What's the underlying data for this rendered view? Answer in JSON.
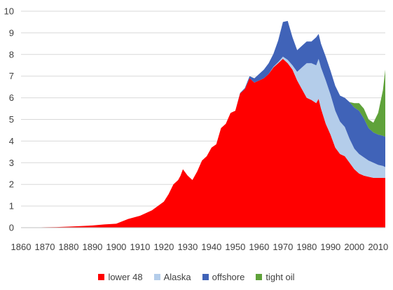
{
  "chart_data": {
    "type": "area",
    "stacked": true,
    "title": "",
    "xlabel": "",
    "ylabel": "",
    "xlim": [
      1860,
      2013
    ],
    "ylim": [
      0,
      10
    ],
    "grid": "horizontal",
    "legend_position": "bottom",
    "x_ticks": [
      1860,
      1870,
      1880,
      1890,
      1900,
      1910,
      1920,
      1930,
      1940,
      1950,
      1960,
      1970,
      1980,
      1990,
      2000,
      2010
    ],
    "y_ticks": [
      0,
      1,
      2,
      3,
      4,
      5,
      6,
      7,
      8,
      9,
      10
    ],
    "x": [
      1860,
      1865,
      1870,
      1875,
      1880,
      1885,
      1890,
      1895,
      1900,
      1905,
      1910,
      1915,
      1920,
      1922,
      1924,
      1926,
      1927,
      1928,
      1930,
      1932,
      1934,
      1936,
      1938,
      1940,
      1942,
      1944,
      1946,
      1948,
      1950,
      1952,
      1954,
      1956,
      1958,
      1960,
      1962,
      1964,
      1966,
      1968,
      1970,
      1972,
      1974,
      1976,
      1978,
      1980,
      1982,
      1984,
      1985,
      1986,
      1988,
      1990,
      1992,
      1994,
      1996,
      1998,
      2000,
      2002,
      2004,
      2006,
      2008,
      2010,
      2012,
      2013
    ],
    "series": [
      {
        "name": "lower 48",
        "color": "#ff0000",
        "values": [
          0.0,
          0.01,
          0.02,
          0.03,
          0.05,
          0.07,
          0.1,
          0.15,
          0.18,
          0.4,
          0.55,
          0.8,
          1.2,
          1.55,
          2.0,
          2.2,
          2.4,
          2.7,
          2.4,
          2.2,
          2.6,
          3.1,
          3.3,
          3.7,
          3.85,
          4.6,
          4.8,
          5.3,
          5.4,
          6.2,
          6.4,
          6.9,
          6.7,
          6.8,
          6.9,
          7.1,
          7.4,
          7.6,
          7.8,
          7.6,
          7.3,
          6.8,
          6.4,
          6.0,
          5.9,
          5.75,
          5.95,
          5.5,
          4.8,
          4.3,
          3.7,
          3.4,
          3.3,
          3.0,
          2.7,
          2.5,
          2.4,
          2.35,
          2.3,
          2.3,
          2.3,
          2.3
        ]
      },
      {
        "name": "Alaska",
        "color": "#b4cdea",
        "values": [
          0,
          0,
          0,
          0,
          0,
          0,
          0,
          0,
          0,
          0,
          0,
          0,
          0,
          0,
          0,
          0,
          0,
          0,
          0,
          0,
          0,
          0,
          0,
          0,
          0,
          0,
          0,
          0,
          0,
          0,
          0,
          0,
          0,
          0,
          0,
          0,
          0.03,
          0.05,
          0.1,
          0.15,
          0.2,
          0.4,
          1.0,
          1.6,
          1.7,
          1.75,
          1.85,
          1.9,
          2.0,
          1.85,
          1.7,
          1.5,
          1.35,
          1.1,
          0.95,
          0.9,
          0.85,
          0.75,
          0.7,
          0.6,
          0.55,
          0.5
        ]
      },
      {
        "name": "offshore",
        "color": "#4063b8",
        "values": [
          0,
          0,
          0,
          0,
          0,
          0,
          0,
          0,
          0,
          0,
          0,
          0,
          0,
          0,
          0,
          0,
          0,
          0,
          0,
          0,
          0,
          0,
          0,
          0,
          0,
          0,
          0,
          0,
          0,
          0.02,
          0.05,
          0.1,
          0.2,
          0.3,
          0.4,
          0.5,
          0.6,
          1.0,
          1.6,
          1.8,
          1.3,
          1.0,
          1.0,
          1.0,
          1.0,
          1.3,
          1.15,
          1.1,
          1.1,
          1.1,
          1.15,
          1.2,
          1.35,
          1.7,
          1.9,
          2.0,
          1.8,
          1.5,
          1.4,
          1.4,
          1.4,
          1.4
        ]
      },
      {
        "name": "tight oil",
        "color": "#5fa23a",
        "values": [
          0,
          0,
          0,
          0,
          0,
          0,
          0,
          0,
          0,
          0,
          0,
          0,
          0,
          0,
          0,
          0,
          0,
          0,
          0,
          0,
          0,
          0,
          0,
          0,
          0,
          0,
          0,
          0,
          0,
          0,
          0,
          0,
          0,
          0,
          0,
          0,
          0,
          0,
          0,
          0,
          0,
          0,
          0,
          0,
          0,
          0,
          0,
          0,
          0,
          0,
          0,
          0,
          0,
          0,
          0.2,
          0.35,
          0.45,
          0.4,
          0.45,
          1.0,
          2.1,
          3.1
        ]
      }
    ]
  }
}
